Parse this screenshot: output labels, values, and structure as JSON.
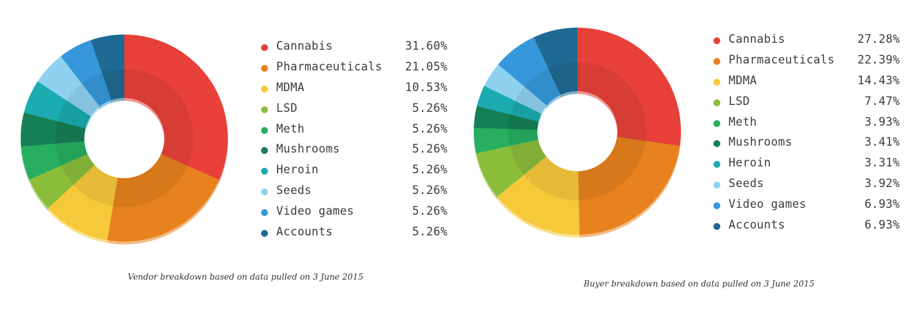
{
  "colors": {
    "Cannabis": "#e8413a",
    "Pharmaceuticals": "#e8821e",
    "MDMA": "#f6c93b",
    "LSD": "#8bbd3a",
    "Meth": "#27ae60",
    "Mushrooms": "#157f55",
    "Heroin": "#1aacb0",
    "Seeds": "#8fd2f0",
    "Video games": "#3698db",
    "Accounts": "#1f6a94"
  },
  "chart_data": [
    {
      "type": "pie",
      "subtype": "donut",
      "title": "",
      "caption": "Vendor breakdown based on data pulled on 3 June 2015",
      "legend_position": "right",
      "slices": [
        {
          "label": "Cannabis",
          "value": 31.6,
          "display": "31.60%"
        },
        {
          "label": "Pharmaceuticals",
          "value": 21.05,
          "display": "21.05%"
        },
        {
          "label": "MDMA",
          "value": 10.53,
          "display": "10.53%"
        },
        {
          "label": "LSD",
          "value": 5.26,
          "display": "5.26%"
        },
        {
          "label": "Meth",
          "value": 5.26,
          "display": "5.26%"
        },
        {
          "label": "Mushrooms",
          "value": 5.26,
          "display": "5.26%"
        },
        {
          "label": "Heroin",
          "value": 5.26,
          "display": "5.26%"
        },
        {
          "label": "Seeds",
          "value": 5.26,
          "display": "5.26%"
        },
        {
          "label": "Video games",
          "value": 5.26,
          "display": "5.26%"
        },
        {
          "label": "Accounts",
          "value": 5.26,
          "display": "5.26%"
        }
      ]
    },
    {
      "type": "pie",
      "subtype": "donut",
      "title": "",
      "caption": "Buyer breakdown based on data pulled on 3 June 2015",
      "legend_position": "right",
      "slices": [
        {
          "label": "Cannabis",
          "value": 27.28,
          "display": "27.28%"
        },
        {
          "label": "Pharmaceuticals",
          "value": 22.39,
          "display": "22.39%"
        },
        {
          "label": "MDMA",
          "value": 14.43,
          "display": "14.43%"
        },
        {
          "label": "LSD",
          "value": 7.47,
          "display": "7.47%"
        },
        {
          "label": "Meth",
          "value": 3.93,
          "display": "3.93%"
        },
        {
          "label": "Mushrooms",
          "value": 3.41,
          "display": "3.41%"
        },
        {
          "label": "Heroin",
          "value": 3.31,
          "display": "3.31%"
        },
        {
          "label": "Seeds",
          "value": 3.92,
          "display": "3.92%"
        },
        {
          "label": "Video games",
          "value": 6.93,
          "display": "6.93%"
        },
        {
          "label": "Accounts",
          "value": 6.93,
          "display": "6.93%"
        }
      ]
    }
  ]
}
